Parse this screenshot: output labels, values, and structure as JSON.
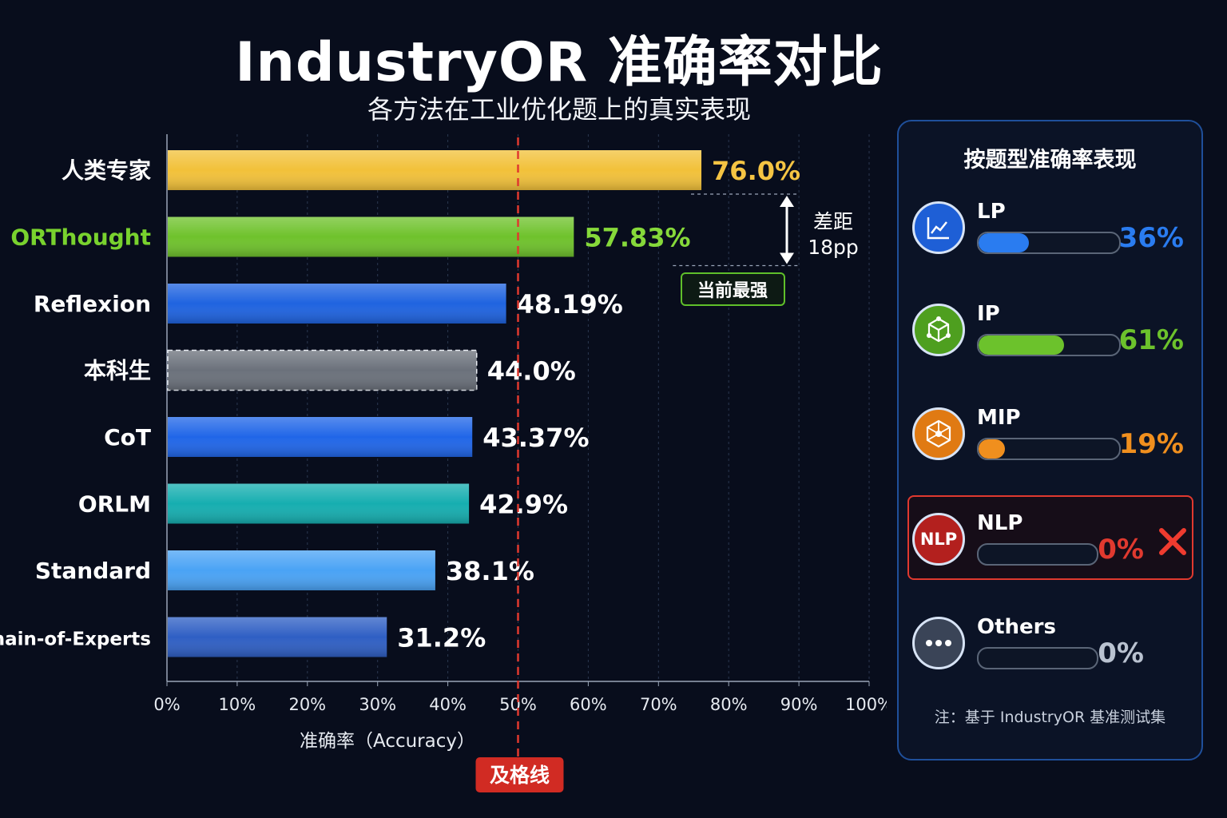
{
  "title": "IndustryOR 准确率对比",
  "subtitle": "各方法在工业优化题上的真实表现",
  "chart_data": {
    "type": "bar",
    "orientation": "horizontal",
    "categories": [
      "人类专家",
      "ORThought",
      "Reflexion",
      "本科生",
      "CoT",
      "ORLM",
      "Standard",
      "Chain-of-Experts"
    ],
    "values": [
      76.0,
      57.83,
      48.19,
      44.0,
      43.37,
      42.9,
      38.1,
      31.2
    ],
    "value_labels": [
      "76.0%",
      "57.83%",
      "48.19%",
      "44.0%",
      "43.37%",
      "42.9%",
      "38.1%",
      "31.2%"
    ],
    "colors": [
      "#f2c13a",
      "#6fc22c",
      "#1f63e0",
      "#6b717b",
      "#2066e8",
      "#16aeb0",
      "#4aa3f5",
      "#2f5fc4"
    ],
    "xlabel": "准确率（Accuracy）",
    "xlim": [
      0,
      100
    ],
    "xticks": [
      "0%",
      "10%",
      "20%",
      "30%",
      "40%",
      "50%",
      "60%",
      "70%",
      "80%",
      "90%",
      "100%"
    ],
    "grid": true,
    "reference_line": {
      "value": 50,
      "label": "及格线"
    },
    "gap_annotation": {
      "label_line1": "差距",
      "label_line2": "18pp",
      "from": 76.0,
      "to": 57.83
    },
    "badge": "当前最强"
  },
  "panel": {
    "title": "按题型准确率表现",
    "categories": [
      {
        "name": "LP",
        "value": 36,
        "value_label": "36%",
        "color": "#2a7cf0",
        "icon": "chart-line-icon"
      },
      {
        "name": "IP",
        "value": 61,
        "value_label": "61%",
        "color": "#6cc22c",
        "icon": "cube-network-icon"
      },
      {
        "name": "MIP",
        "value": 19,
        "value_label": "19%",
        "color": "#f08f1e",
        "icon": "hexagon-network-icon"
      },
      {
        "name": "NLP",
        "value": 0,
        "value_label": "0%",
        "color": "#e0392f",
        "icon": "nlp-badge-icon",
        "icon_text": "NLP"
      },
      {
        "name": "Others",
        "value": 0,
        "value_label": "0%",
        "color": "#b9c2d0",
        "icon": "ellipsis-icon"
      }
    ],
    "footnote": "注：基于 IndustryOR 基准测试集"
  }
}
